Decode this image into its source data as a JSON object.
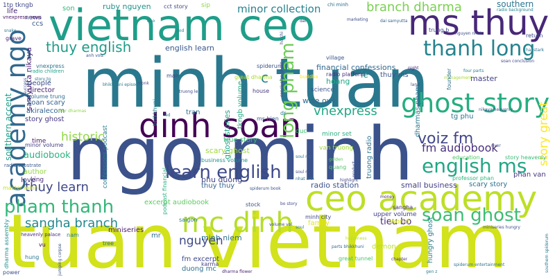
{
  "word_cloud": {
    "words": [
      {
        "text": "minh tuan",
        "color": "#2a788e"
      },
      {
        "text": "ngo minh",
        "color": "#3b528b"
      },
      {
        "text": "tuan vietnam",
        "color": "#d2e21b"
      },
      {
        "text": "vietnam ceo",
        "color": "#1f9e89"
      },
      {
        "text": "dinh soan",
        "color": "#440154"
      },
      {
        "text": "ms thuy",
        "color": "#482878"
      },
      {
        "text": "ceo academy",
        "color": "#bddf26"
      },
      {
        "text": "mc dinh",
        "color": "#b5de2b"
      },
      {
        "text": "academy ngo",
        "color": "#31688e"
      },
      {
        "text": "ghost story",
        "color": "#27ad81"
      },
      {
        "text": "thanh long",
        "color": "#25838e"
      },
      {
        "text": "english ms",
        "color": "#21a685"
      },
      {
        "text": "pham thanh",
        "color": "#34b679"
      },
      {
        "text": "soan ghost",
        "color": "#3dbc74"
      },
      {
        "text": "long pham",
        "color": "#6ece58"
      },
      {
        "text": "learn english",
        "color": "#3e4989"
      },
      {
        "text": "thuy english",
        "color": "#1e9c89"
      },
      {
        "text": "voiz fm",
        "color": "#404688"
      },
      {
        "text": "branch dharma",
        "color": "#7ad151"
      },
      {
        "text": "sangha branch",
        "color": "#23888e"
      },
      {
        "text": "fm audiobook",
        "color": "#472f7d"
      },
      {
        "text": "vnexpress",
        "color": "#22a785"
      },
      {
        "text": "thuy learn",
        "color": "#3f4788"
      },
      {
        "text": "nguyen",
        "color": "#3e4a89"
      },
      {
        "text": "historic",
        "color": "#8fd744"
      },
      {
        "text": "story great",
        "color": "#fde725"
      },
      {
        "text": "ruby nguyen",
        "color": "#21918c"
      },
      {
        "text": "minor collection",
        "color": "#26828e"
      },
      {
        "text": "chi minh",
        "color": "#2d708e"
      },
      {
        "text": "1tp tkngb",
        "color": "#3e4989"
      },
      {
        "text": "audiobook",
        "color": "#2db27d"
      },
      {
        "text": "southern accent",
        "color": "#1fa088"
      },
      {
        "text": "samyutta nikaya",
        "color": "#482576"
      },
      {
        "text": "scary ghost",
        "color": "#9dd93b"
      },
      {
        "text": "tieu bo",
        "color": "#482475"
      },
      {
        "text": "small business",
        "color": "#433e85"
      },
      {
        "text": "radio station",
        "color": "#3b528b"
      },
      {
        "text": "excerpt audiobook",
        "color": "#5ec962"
      },
      {
        "text": "phu duong",
        "color": "#414487"
      },
      {
        "text": "minh niem",
        "color": "#2e6f8e"
      },
      {
        "text": "english learn",
        "color": "#39568c"
      },
      {
        "text": "financial confessions",
        "color": "#31688e"
      },
      {
        "text": "wise owl",
        "color": "#31678e"
      },
      {
        "text": "science",
        "color": "#3a548c"
      },
      {
        "text": "hoang",
        "color": "#23a983"
      },
      {
        "text": "master",
        "color": "#424186"
      },
      {
        "text": "ghost stories",
        "color": "#20a486"
      },
      {
        "text": "tkngb volume",
        "color": "#25ab82"
      },
      {
        "text": "fm excerpt",
        "color": "#3f4889"
      },
      {
        "text": "duong mc",
        "color": "#2e6e8e"
      },
      {
        "text": "tran",
        "color": "#2c728e"
      },
      {
        "text": "miniseries",
        "color": "#481b6d"
      },
      {
        "text": "demon",
        "color": "#b8de29"
      },
      {
        "text": "southern",
        "color": "#2a768e"
      },
      {
        "text": "time",
        "color": "#471164"
      },
      {
        "text": "family",
        "color": "#e5e419"
      },
      {
        "text": "love",
        "color": "#453882"
      },
      {
        "text": "people",
        "color": "#3d4d8a"
      },
      {
        "text": "director",
        "color": "#482173"
      },
      {
        "text": "author",
        "color": "#93d741"
      },
      {
        "text": "king",
        "color": "#482979"
      },
      {
        "text": "soan scary",
        "color": "#34608d"
      },
      {
        "text": "akiralecom",
        "color": "#33638d"
      },
      {
        "text": "story ghost",
        "color": "#453781"
      },
      {
        "text": "thuy ms",
        "color": "#3a538b"
      },
      {
        "text": "phan van",
        "color": "#46337f"
      },
      {
        "text": "van truong",
        "color": "#a0da39"
      },
      {
        "text": "tg phu",
        "color": "#2b748e"
      },
      {
        "text": "minor set",
        "color": "#2ab07f"
      },
      {
        "text": "duc",
        "color": "#44bf70"
      },
      {
        "text": "le",
        "color": "#1f958b"
      },
      {
        "text": "mr",
        "color": "#2f6c8e"
      },
      {
        "text": "true story",
        "color": "#3aba76"
      },
      {
        "text": "confessions podcast",
        "color": "#287d8e"
      },
      {
        "text": "podcast financial",
        "color": "#29af7f"
      },
      {
        "text": "truong radio",
        "color": "#2c738e"
      },
      {
        "text": "dharmas pham",
        "color": "#2a778e"
      },
      {
        "text": "scary story",
        "color": "#2c718e"
      },
      {
        "text": "education",
        "color": "#52c569"
      },
      {
        "text": "story heavenly",
        "color": "#3aba76"
      },
      {
        "text": "upper volume",
        "color": "#424086"
      },
      {
        "text": "sangha",
        "color": "#482677"
      },
      {
        "text": "world",
        "color": "#d0e11c"
      },
      {
        "text": "news",
        "color": "#3f4a8a"
      },
      {
        "text": "sip",
        "color": "#8bd646"
      },
      {
        "text": "son",
        "color": "#35b779"
      },
      {
        "text": "cct story",
        "color": "#3f4788"
      },
      {
        "text": "life",
        "color": "#482071"
      },
      {
        "text": "ccs",
        "color": "#38598c"
      },
      {
        "text": "c",
        "color": "#26828e"
      },
      {
        "text": "trung b",
        "color": "#3d4d8a"
      },
      {
        "text": "return",
        "color": "#3e4a89"
      },
      {
        "text": "radio platform",
        "color": "#472d7b"
      },
      {
        "text": "village",
        "color": "#39558c"
      },
      {
        "text": "house",
        "color": "#453781"
      },
      {
        "text": "karma",
        "color": "#433d84"
      },
      {
        "text": "business volume",
        "color": "#20938c"
      },
      {
        "text": "thuy thuy",
        "color": "#34618d"
      },
      {
        "text": "bhikkhuni",
        "color": "#26818e"
      },
      {
        "text": "saigon",
        "color": "#2b758e"
      },
      {
        "text": "tree",
        "color": "#2e6d8e"
      },
      {
        "text": "golden",
        "color": "#5cc863"
      },
      {
        "text": "quang",
        "color": "#50c46a"
      },
      {
        "text": "professor phan",
        "color": "#2fb47c"
      },
      {
        "text": "great tunnel",
        "color": "#4ac16d"
      },
      {
        "text": "chapter",
        "color": "#46307e"
      },
      {
        "text": "hungry ghost",
        "color": "#287c8e"
      },
      {
        "text": "miniseries hungry",
        "color": "#3e4c8a"
      },
      {
        "text": "power",
        "color": "#3b518b"
      },
      {
        "text": "gen z",
        "color": "#287d8e"
      },
      {
        "text": "soul mc",
        "color": "#3c4f8a"
      },
      {
        "text": "nhat anh",
        "color": "#2c728e"
      },
      {
        "text": "stock",
        "color": "#3c4f8a"
      },
      {
        "text": "bo story",
        "color": "#3e4a89"
      },
      {
        "text": "minh city",
        "color": "#3f4889"
      },
      {
        "text": "parts bhikkhuni",
        "color": "#31678e"
      },
      {
        "text": "dharma assembly",
        "color": "#228d8d"
      },
      {
        "text": "heavenly palace",
        "color": "#472c7a"
      },
      {
        "text": "master minh",
        "color": "#c5e021"
      },
      {
        "text": "radio substrate",
        "color": "#38588c"
      },
      {
        "text": "minor volume",
        "color": "#424186"
      },
      {
        "text": "volume trung",
        "color": "#2f6b8e"
      },
      {
        "text": "radio children",
        "color": "#20a386"
      },
      {
        "text": "vnexpress news",
        "color": "#471365"
      },
      {
        "text": "spiderum",
        "color": "#3c508b"
      },
      {
        "text": "marketing",
        "color": "#3e4a89"
      },
      {
        "text": "dai samyutta",
        "color": "#34608d"
      },
      {
        "text": "hai stark",
        "color": "#2c728e"
      },
      {
        "text": "radio background",
        "color": "#26828e"
      },
      {
        "text": "soan conclusion",
        "color": "#3f4788"
      },
      {
        "text": "dharma flower",
        "color": "#482173"
      },
      {
        "text": "management",
        "color": "#a8db34"
      },
      {
        "text": "nikaya heavenly",
        "color": "#3a548c"
      },
      {
        "text": "soul mc",
        "color": "#2d708e"
      },
      {
        "text": "happiness",
        "color": "#b5de2b"
      },
      {
        "text": "jumping corpse",
        "color": "#3b528b"
      },
      {
        "text": "vu",
        "color": "#440154"
      },
      {
        "text": "hung",
        "color": "#2a778e"
      },
      {
        "text": "nam",
        "color": "#277f8e"
      },
      {
        "text": "four parts",
        "color": "#25838e"
      },
      {
        "text": "land",
        "color": "#3b518b"
      },
      {
        "text": "grave",
        "color": "#482475"
      },
      {
        "text": "snake",
        "color": "#2a788e"
      },
      {
        "text": "man",
        "color": "#3e4989"
      },
      {
        "text": "monk",
        "color": "#3d4e8a"
      },
      {
        "text": "truong le",
        "color": "#3f4788"
      },
      {
        "text": "god",
        "color": "#287d8e"
      },
      {
        "text": "dao",
        "color": "#2a768e"
      },
      {
        "text": "dai",
        "color": "#453882"
      },
      {
        "text": "ho chi",
        "color": "#3b528b"
      },
      {
        "text": "buddha",
        "color": "#fde725"
      },
      {
        "text": "great dharma",
        "color": "#addc30"
      },
      {
        "text": "spiderum book",
        "color": "#3b528b"
      },
      {
        "text": "conclusion ghost",
        "color": "#3e4a89"
      },
      {
        "text": "highlight",
        "color": "#414487"
      },
      {
        "text": "bhikkhuni episode",
        "color": "#2a788e"
      },
      {
        "text": "four dharmas",
        "color": "#8fd744"
      },
      {
        "text": "fed",
        "color": "#2a788e"
      },
      {
        "text": "product",
        "color": "#3e4989"
      },
      {
        "text": "river",
        "color": "#3d4e8a"
      },
      {
        "text": "money",
        "color": "#482071"
      },
      {
        "text": "night",
        "color": "#482878"
      },
      {
        "text": "founder",
        "color": "#2c718e"
      },
      {
        "text": "success",
        "color": "#3c508b"
      },
      {
        "text": "story tg",
        "color": "#2b748e"
      },
      {
        "text": "vnexpress",
        "color": "#2c738e"
      },
      {
        "text": "dr",
        "color": "#2a778e"
      },
      {
        "text": "ms hien",
        "color": "#38598c"
      },
      {
        "text": "nguyen nhat",
        "color": "#3e4a89"
      },
      {
        "text": "soul",
        "color": "#2c718e"
      },
      {
        "text": "volume vol",
        "color": "#3e4989"
      },
      {
        "text": "anh voiz",
        "color": "#3b528b"
      },
      {
        "text": "spiderum entertainment",
        "color": "#2c728e"
      },
      {
        "text": "southern spiderum",
        "color": "#2a768e"
      }
    ]
  }
}
